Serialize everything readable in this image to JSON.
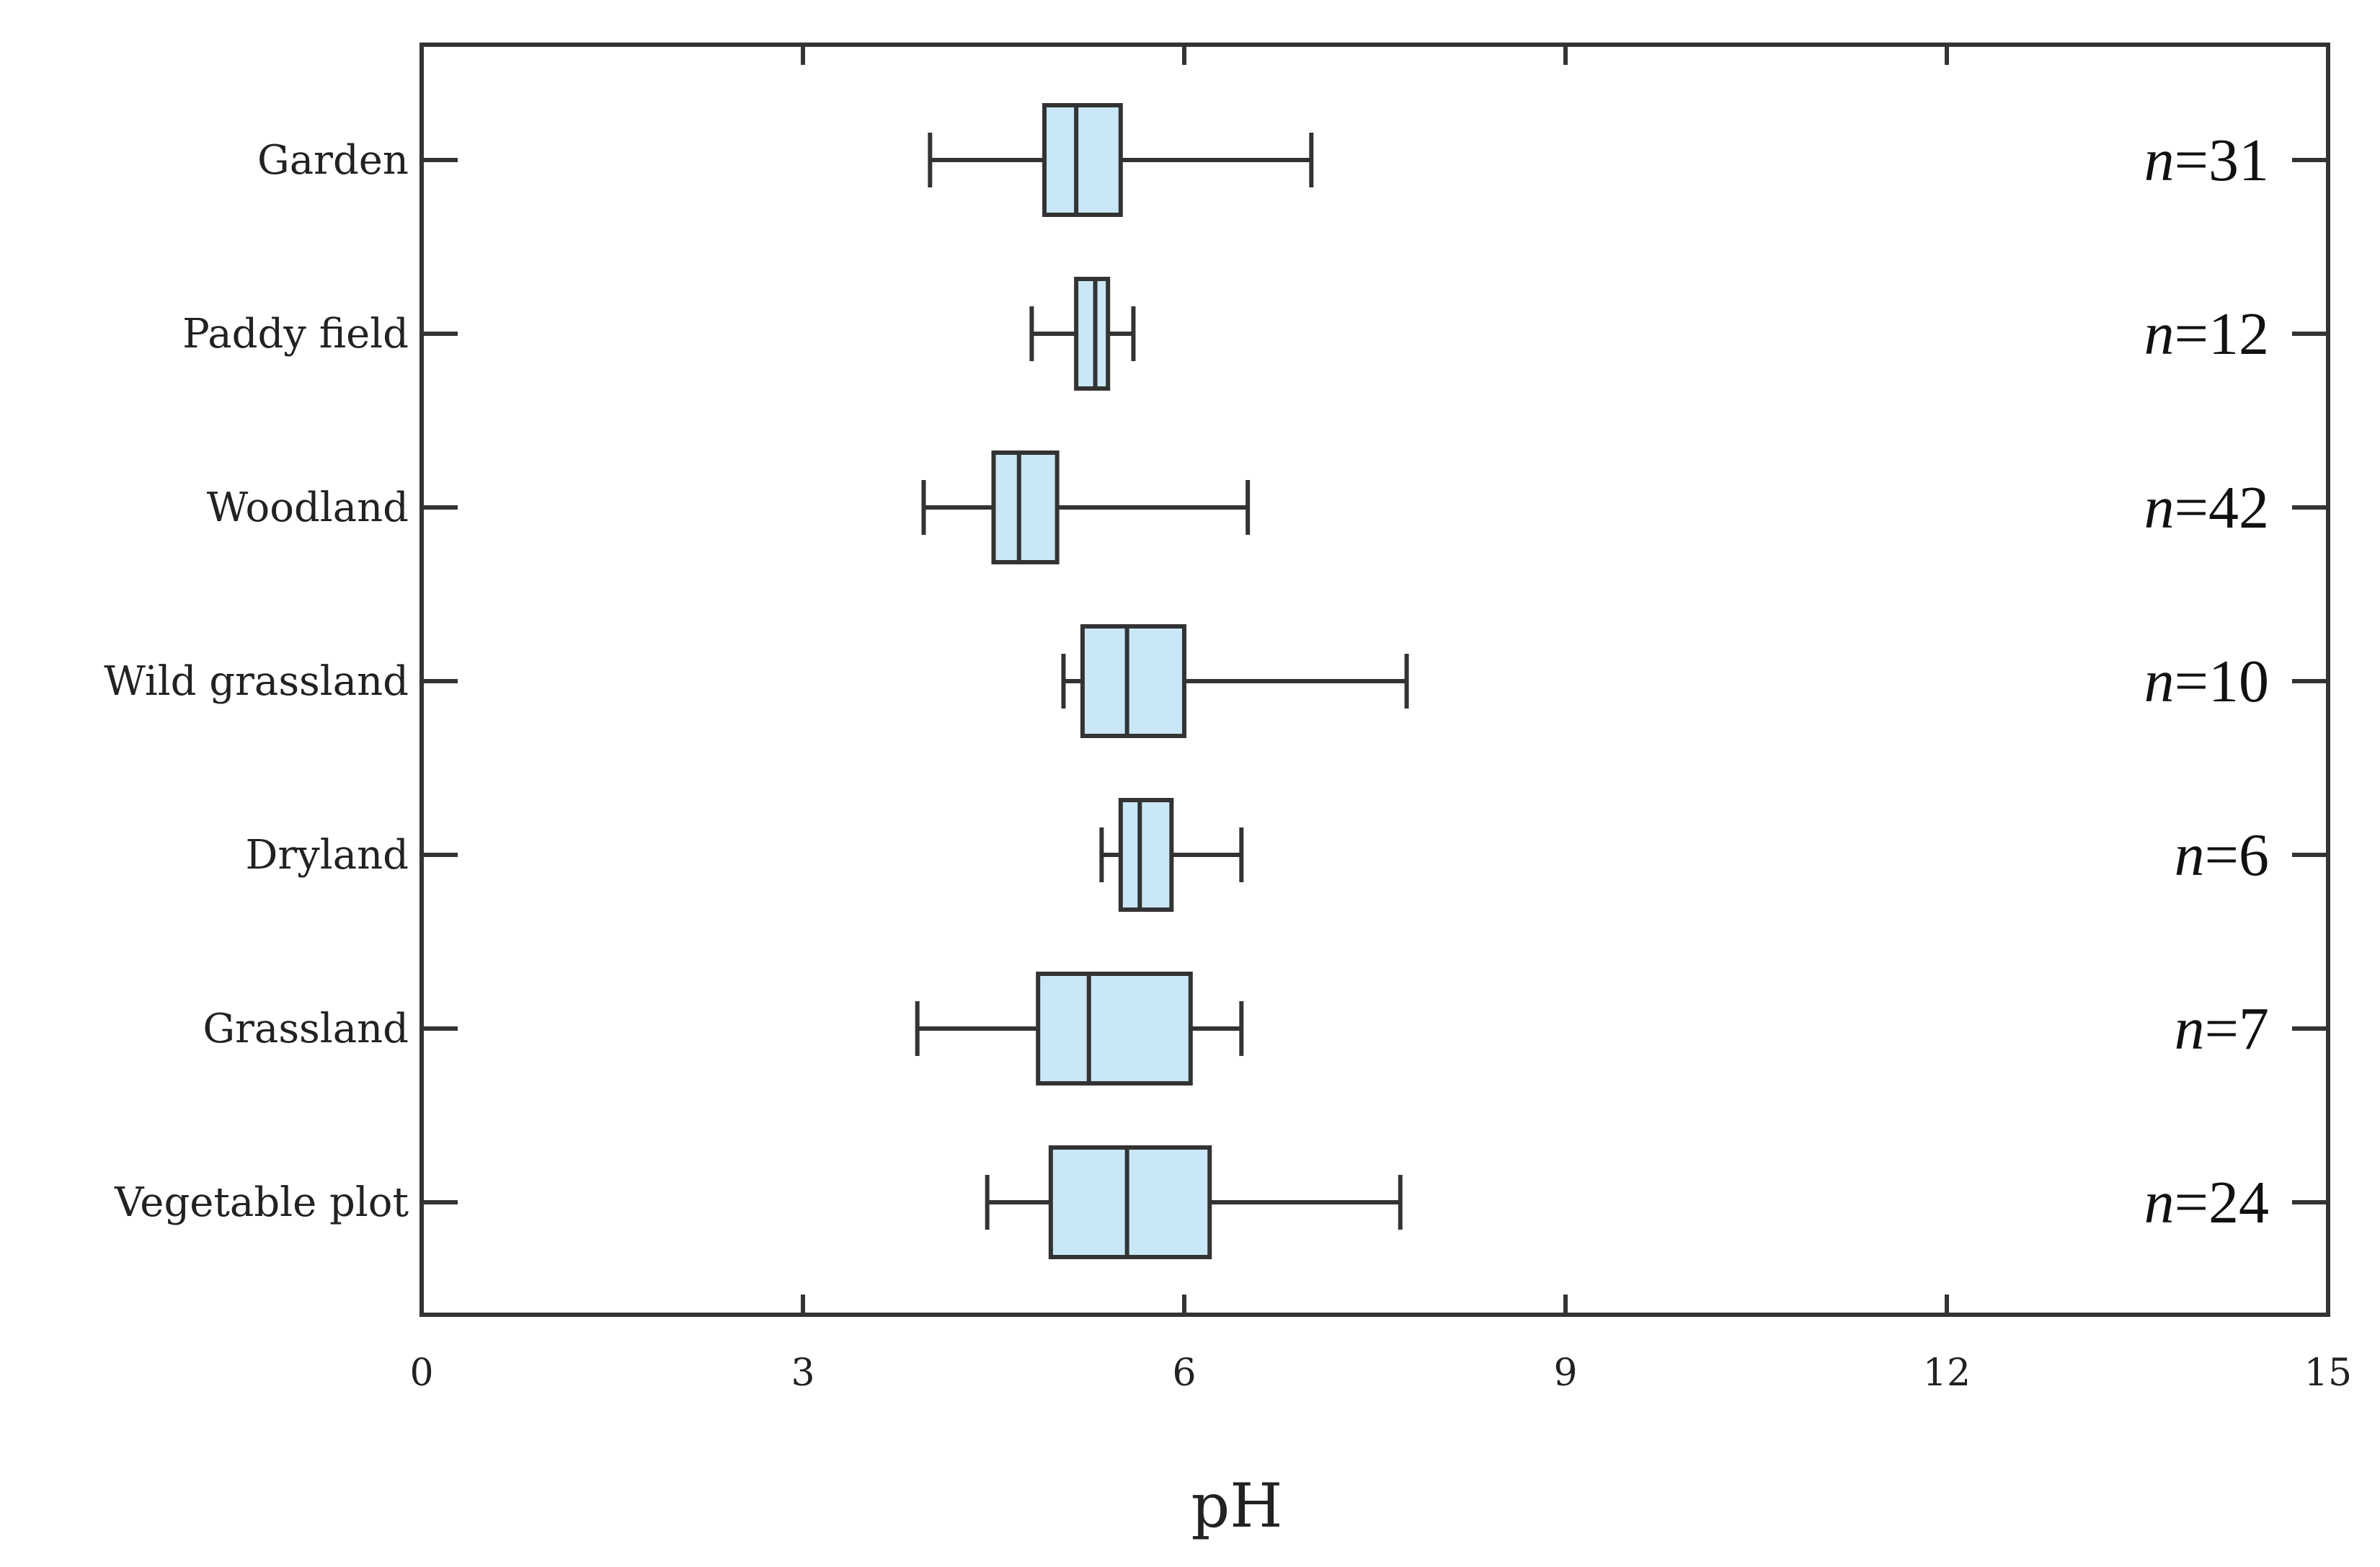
{
  "chart_data": {
    "type": "boxplot",
    "orientation": "horizontal",
    "xlabel": "pH",
    "xlim": [
      0,
      15
    ],
    "xticks": [
      0,
      3,
      6,
      9,
      12,
      15
    ],
    "grid": false,
    "box_color": "#c9e7f6",
    "edge_color": "#333333",
    "categories": [
      {
        "label": "Garden",
        "n_label": "n=31",
        "whisker_low": 4.0,
        "q1": 4.9,
        "median": 5.15,
        "q3": 5.5,
        "whisker_high": 7.0
      },
      {
        "label": "Paddy field",
        "n_label": "n=12",
        "whisker_low": 4.8,
        "q1": 5.15,
        "median": 5.3,
        "q3": 5.4,
        "whisker_high": 5.6
      },
      {
        "label": "Woodland",
        "n_label": "n=42",
        "whisker_low": 3.95,
        "q1": 4.5,
        "median": 4.7,
        "q3": 5.0,
        "whisker_high": 6.5
      },
      {
        "label": "Wild grassland",
        "n_label": "n=10",
        "whisker_low": 5.05,
        "q1": 5.2,
        "median": 5.55,
        "q3": 6.0,
        "whisker_high": 7.75
      },
      {
        "label": "Dryland",
        "n_label": "n=6",
        "whisker_low": 5.35,
        "q1": 5.5,
        "median": 5.65,
        "q3": 5.9,
        "whisker_high": 6.45
      },
      {
        "label": "Grassland",
        "n_label": "n=7",
        "whisker_low": 3.9,
        "q1": 4.85,
        "median": 5.25,
        "q3": 6.05,
        "whisker_high": 6.45
      },
      {
        "label": "Vegetable plot",
        "n_label": "n=24",
        "whisker_low": 4.45,
        "q1": 4.95,
        "median": 5.55,
        "q3": 6.2,
        "whisker_high": 7.7
      }
    ]
  }
}
